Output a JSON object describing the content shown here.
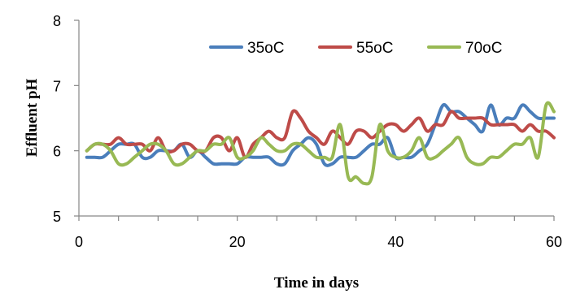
{
  "chart_data": {
    "type": "line",
    "title": "",
    "xlabel": "Time in days",
    "ylabel": "Effluent pH",
    "xlim": [
      0,
      60
    ],
    "ylim": [
      5,
      8
    ],
    "x_ticks": [
      "0",
      "20",
      "40",
      "60"
    ],
    "y_ticks": [
      "5",
      "6",
      "7",
      "8"
    ],
    "grid": false,
    "legend_position": "top-right",
    "series": [
      {
        "name": "35oC",
        "color": "#4a7ebb",
        "x": [
          1,
          2,
          3,
          4,
          5,
          6,
          7,
          8,
          9,
          10,
          11,
          12,
          13,
          14,
          15,
          16,
          17,
          18,
          19,
          20,
          21,
          22,
          23,
          24,
          25,
          26,
          27,
          28,
          29,
          30,
          31,
          32,
          33,
          34,
          35,
          36,
          37,
          38,
          39,
          40,
          41,
          42,
          43,
          44,
          45,
          46,
          47,
          48,
          49,
          50,
          51,
          52,
          53,
          54,
          55,
          56,
          57,
          58,
          59,
          60
        ],
        "y": [
          5.9,
          5.9,
          5.9,
          6.0,
          6.1,
          6.1,
          6.1,
          5.9,
          5.9,
          6.0,
          6.0,
          6.0,
          6.1,
          5.9,
          6.0,
          5.9,
          5.8,
          5.8,
          5.8,
          5.8,
          5.9,
          5.9,
          5.9,
          5.9,
          5.8,
          5.8,
          6.0,
          6.1,
          6.2,
          6.1,
          5.8,
          5.8,
          5.9,
          5.9,
          5.9,
          6.0,
          6.1,
          6.1,
          6.2,
          5.9,
          5.9,
          5.9,
          6.0,
          6.1,
          6.4,
          6.7,
          6.6,
          6.6,
          6.5,
          6.4,
          6.3,
          6.7,
          6.4,
          6.5,
          6.5,
          6.7,
          6.6,
          6.5,
          6.5,
          6.5
        ]
      },
      {
        "name": "55oC",
        "color": "#be4b48",
        "x": [
          1,
          2,
          3,
          4,
          5,
          6,
          7,
          8,
          9,
          10,
          11,
          12,
          13,
          14,
          15,
          16,
          17,
          18,
          19,
          20,
          21,
          22,
          23,
          24,
          25,
          26,
          27,
          28,
          29,
          30,
          31,
          32,
          33,
          34,
          35,
          36,
          37,
          38,
          39,
          40,
          41,
          42,
          43,
          44,
          45,
          46,
          47,
          48,
          49,
          50,
          51,
          52,
          53,
          54,
          55,
          56,
          57,
          58,
          59,
          60
        ],
        "y": [
          6.0,
          6.1,
          6.1,
          6.1,
          6.2,
          6.1,
          6.1,
          6.1,
          6.0,
          6.2,
          6.0,
          6.0,
          6.1,
          6.1,
          6.0,
          6.0,
          6.2,
          6.2,
          6.0,
          6.2,
          5.9,
          6.1,
          6.2,
          6.3,
          6.2,
          6.2,
          6.6,
          6.5,
          6.3,
          6.2,
          6.1,
          6.3,
          6.2,
          6.1,
          6.3,
          6.3,
          6.2,
          6.3,
          6.4,
          6.4,
          6.3,
          6.4,
          6.5,
          6.3,
          6.4,
          6.4,
          6.6,
          6.5,
          6.5,
          6.5,
          6.5,
          6.4,
          6.4,
          6.4,
          6.4,
          6.3,
          6.4,
          6.3,
          6.3,
          6.2
        ]
      },
      {
        "name": "70oC",
        "color": "#98b954",
        "x": [
          1,
          2,
          3,
          4,
          5,
          6,
          7,
          8,
          9,
          10,
          11,
          12,
          13,
          14,
          15,
          16,
          17,
          18,
          19,
          20,
          21,
          22,
          23,
          24,
          25,
          26,
          27,
          28,
          29,
          30,
          31,
          32,
          33,
          34,
          35,
          36,
          37,
          38,
          39,
          40,
          41,
          42,
          43,
          44,
          45,
          46,
          47,
          48,
          49,
          50,
          51,
          52,
          53,
          54,
          55,
          56,
          57,
          58,
          59,
          60
        ],
        "y": [
          6.0,
          6.1,
          6.1,
          6.0,
          5.8,
          5.8,
          5.9,
          6.0,
          6.1,
          6.1,
          6.0,
          5.8,
          5.8,
          5.9,
          6.0,
          6.0,
          6.1,
          6.1,
          6.2,
          5.9,
          5.9,
          6.0,
          6.2,
          6.1,
          6.0,
          6.0,
          6.1,
          6.1,
          6.0,
          5.9,
          5.9,
          5.9,
          6.4,
          5.6,
          5.6,
          5.5,
          5.6,
          6.4,
          6.0,
          5.9,
          5.9,
          6.0,
          6.2,
          5.9,
          5.9,
          6.0,
          6.1,
          6.2,
          5.9,
          5.8,
          5.8,
          5.9,
          5.9,
          6.0,
          6.1,
          6.1,
          6.2,
          5.9,
          6.7,
          6.6
        ]
      }
    ]
  }
}
